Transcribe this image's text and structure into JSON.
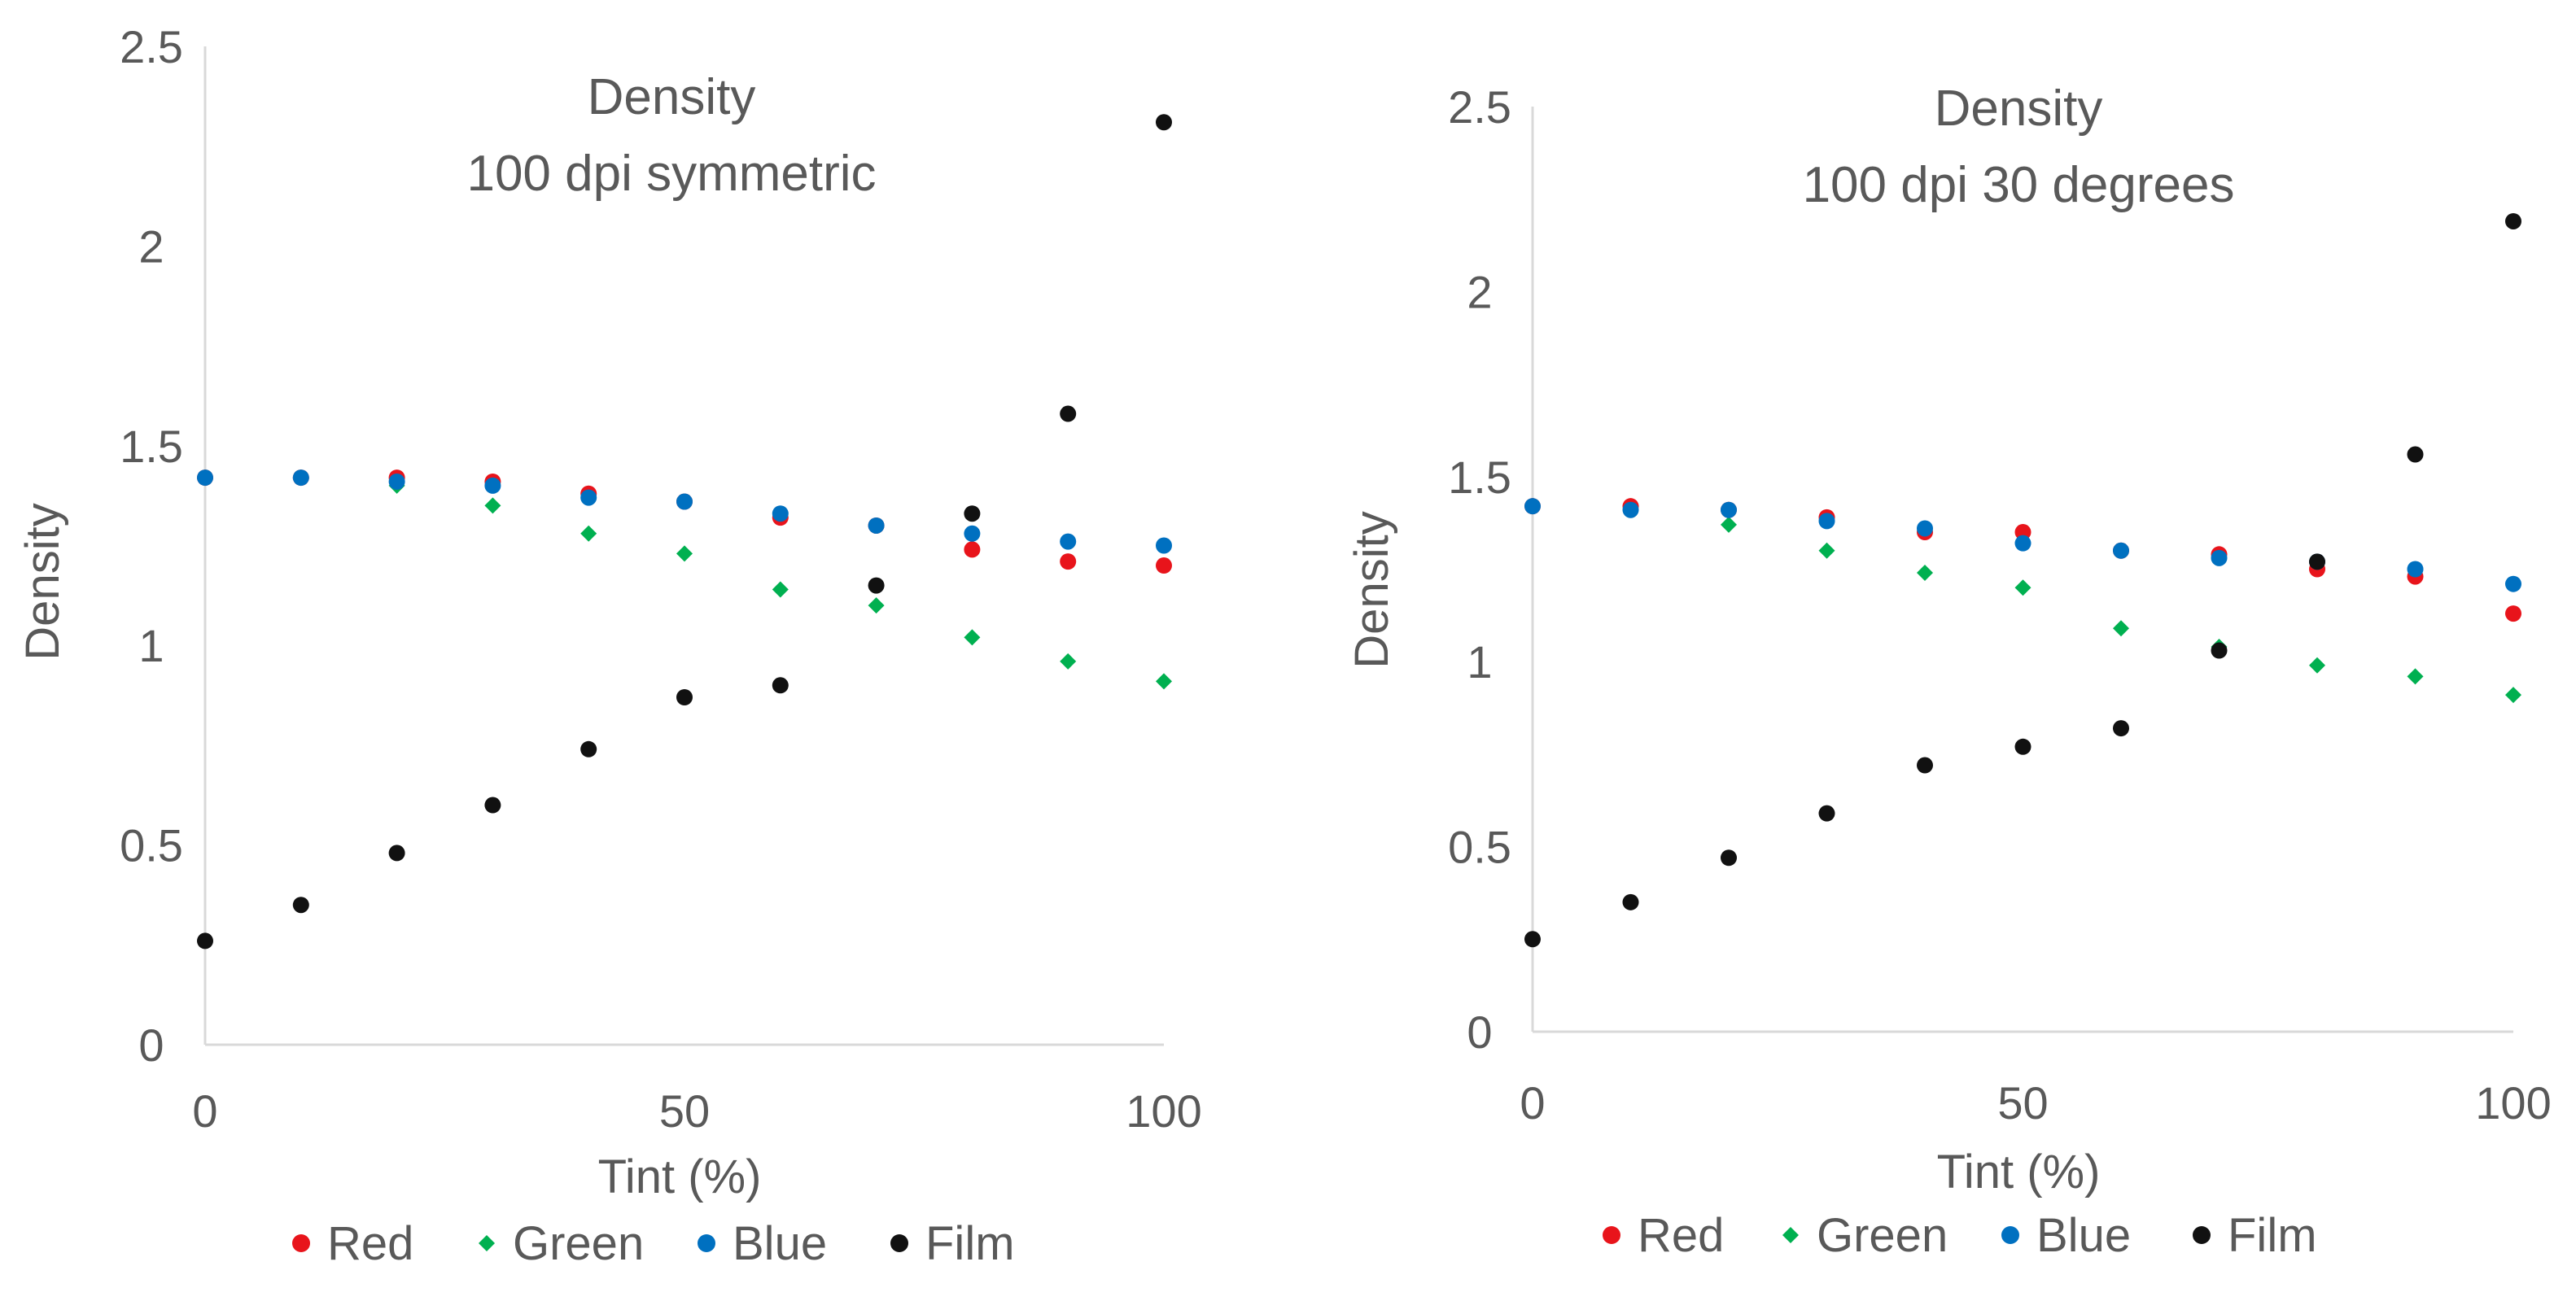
{
  "colors": {
    "Red": "#e8141b",
    "Green": "#00b050",
    "Blue": "#0070c0",
    "Film": "#111111",
    "axis": "#d9d9d9",
    "text": "#595959"
  },
  "chart_data": [
    {
      "type": "scatter",
      "title_line1": "Density",
      "title_line2": "100 dpi symmetric",
      "xlabel": "Tint (%)",
      "ylabel": "Density",
      "xlim": [
        0,
        100
      ],
      "ylim": [
        0,
        2.5
      ],
      "xticks": [
        "0",
        "50",
        "100"
      ],
      "yticks": [
        "0",
        "0.5",
        "1",
        "1.5",
        "2",
        "2.5"
      ],
      "grid": false,
      "legend_position": "bottom",
      "x": [
        0,
        10,
        20,
        30,
        40,
        50,
        60,
        70,
        80,
        90,
        100
      ],
      "series": [
        {
          "name": "Red",
          "marker": "circle",
          "values": [
            1.42,
            1.42,
            1.42,
            1.41,
            1.38,
            1.36,
            1.32,
            1.3,
            1.24,
            1.21,
            1.2
          ]
        },
        {
          "name": "Green",
          "marker": "diamond",
          "values": [
            1.42,
            1.42,
            1.4,
            1.35,
            1.28,
            1.23,
            1.14,
            1.1,
            1.02,
            0.96,
            0.91
          ]
        },
        {
          "name": "Blue",
          "marker": "circle",
          "values": [
            1.42,
            1.42,
            1.41,
            1.4,
            1.37,
            1.36,
            1.33,
            1.3,
            1.28,
            1.26,
            1.25
          ]
        },
        {
          "name": "Film",
          "marker": "circle",
          "values": [
            0.26,
            0.35,
            0.48,
            0.6,
            0.74,
            0.87,
            0.9,
            1.15,
            1.33,
            1.58,
            2.31
          ]
        }
      ]
    },
    {
      "type": "scatter",
      "title_line1": "Density",
      "title_line2": "100 dpi  30 degrees",
      "xlabel": "Tint (%)",
      "ylabel": "Density",
      "xlim": [
        0,
        100
      ],
      "ylim": [
        0,
        2.5
      ],
      "xticks": [
        "0",
        "50",
        "100"
      ],
      "yticks": [
        "0",
        "0.5",
        "1",
        "1.5",
        "2",
        "2.5"
      ],
      "grid": false,
      "legend_position": "bottom",
      "x": [
        0,
        10,
        20,
        30,
        40,
        50,
        60,
        70,
        80,
        90,
        100
      ],
      "series": [
        {
          "name": "Red",
          "marker": "circle",
          "values": [
            1.42,
            1.42,
            1.41,
            1.39,
            1.35,
            1.35,
            1.3,
            1.29,
            1.25,
            1.23,
            1.13
          ]
        },
        {
          "name": "Green",
          "marker": "diamond",
          "values": [
            1.42,
            1.41,
            1.37,
            1.3,
            1.24,
            1.2,
            1.09,
            1.04,
            0.99,
            0.96,
            0.91
          ]
        },
        {
          "name": "Blue",
          "marker": "circle",
          "values": [
            1.42,
            1.41,
            1.41,
            1.38,
            1.36,
            1.32,
            1.3,
            1.28,
            1.27,
            1.25,
            1.21
          ]
        },
        {
          "name": "Film",
          "marker": "circle",
          "values": [
            0.25,
            0.35,
            0.47,
            0.59,
            0.72,
            0.77,
            0.82,
            1.03,
            1.27,
            1.56,
            2.19
          ]
        }
      ]
    }
  ]
}
